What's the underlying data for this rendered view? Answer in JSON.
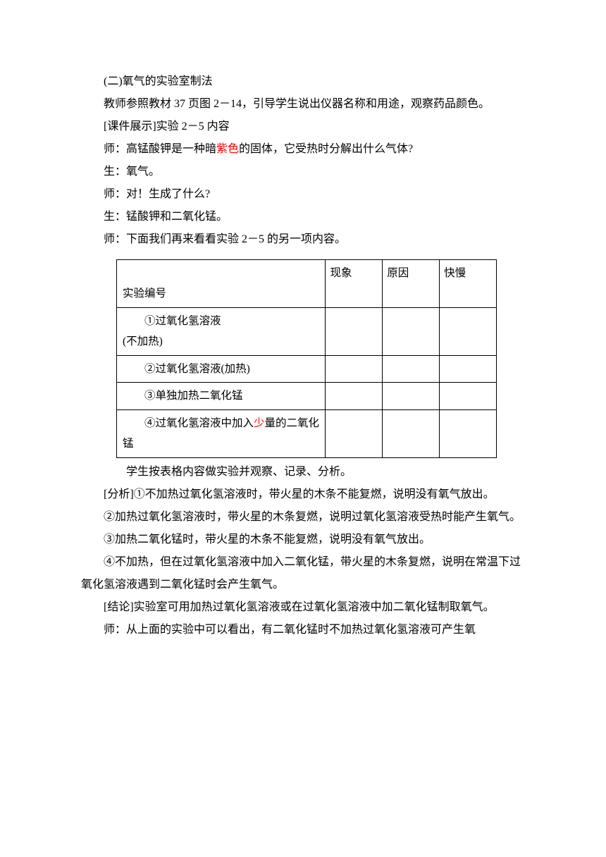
{
  "p1": "(二)氧气的实验室制法",
  "p2": "教师参照教材 37 页图 2－14，引导学生说出仪器名称和用途，观察药品颜色。",
  "p3": "[课件展示]实验 2－5 内容",
  "p4_pre": "师：高锰酸钾是一种暗",
  "p4_hl": "紫色",
  "p4_post": "的固体，它受热时分解出什么气体?",
  "p5": "生：氧气。",
  "p6": "师：对！生成了什么?",
  "p7": "生：锰酸钾和二氧化锰。",
  "p8": "师：下面我们再来看看实验 2－5 的另一项内容。",
  "table": {
    "header": {
      "c1": "实验编号",
      "c2": "现象",
      "c3": "原因",
      "c4": "快慢"
    },
    "rows": [
      {
        "c1_a": "①过氧化氢溶液",
        "c1_b": "(不加热)"
      },
      {
        "c1": "②过氧化氢溶液(加热)"
      },
      {
        "c1": "③单独加热二氧化锰"
      },
      {
        "c1_pre": "④过氧化氢溶液中加入",
        "c1_hl": "少",
        "c1_post": "量的二氧化锰"
      }
    ]
  },
  "p9": "学生按表格内容做实验并观察、记录、分析。",
  "p10": "[分析]①不加热过氧化氢溶液时，带火星的木条不能复燃，说明没有氧气放出。",
  "p11": "②加热过氧化氢溶液时，带火星的木条复燃，说明过氧化氢溶液受热时能产生氧气。",
  "p12": "③加热二氧化锰时，带火星的木条不能复燃，说明没有氧气放出。",
  "p13": "④不加热，但在过氧化氢溶液中加入二氧化锰，带火星的木条复燃，说明在常温下过氧化氢溶液遇到二氧化锰时会产生氧气。",
  "p14": "[结论]实验室可用加热过氧化氢溶液或在过氧化氢溶液中加二氧化锰制取氧气。",
  "p15": "师：从上面的实验中可以看出，有二氧化锰时不加热过氧化氢溶液可产生氧"
}
